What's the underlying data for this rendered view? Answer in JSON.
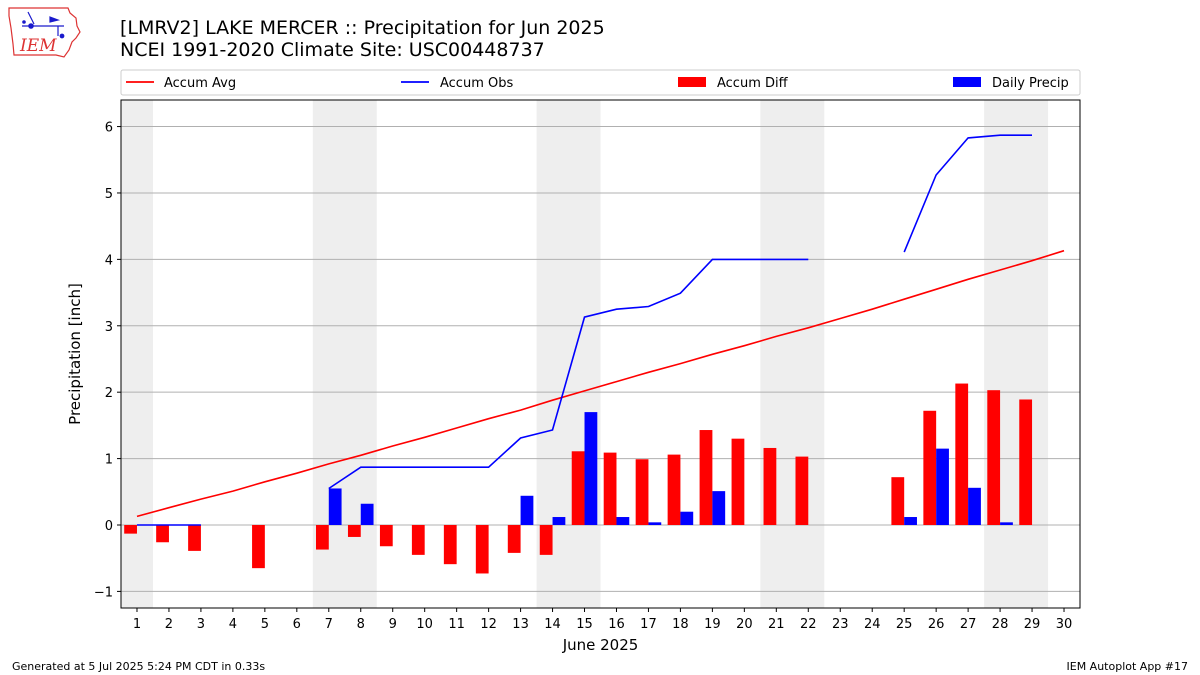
{
  "header": {
    "logo_text": "IEM",
    "title_line1": "[LMRV2] LAKE MERCER :: Precipitation for Jun 2025",
    "title_line2": "NCEI 1991-2020 Climate Site: USC00448737"
  },
  "footer": {
    "generated": "Generated at 5 Jul 2025 5:24 PM CDT in 0.33s",
    "app": "IEM Autoplot App #17"
  },
  "chart_data": {
    "type": "bar",
    "xlabel": "June 2025",
    "ylabel": "Precipitation [inch]",
    "xlim": [
      0.5,
      30.5
    ],
    "ylim": [
      -1.25,
      6.4
    ],
    "yticks": [
      -1,
      0,
      1,
      2,
      3,
      4,
      5,
      6
    ],
    "categories": [
      "1",
      "2",
      "3",
      "4",
      "5",
      "6",
      "7",
      "8",
      "9",
      "10",
      "11",
      "12",
      "13",
      "14",
      "15",
      "16",
      "17",
      "18",
      "19",
      "20",
      "21",
      "22",
      "23",
      "24",
      "25",
      "26",
      "27",
      "28",
      "29",
      "30"
    ],
    "grid": "horizontal",
    "legend_position": "top",
    "weekend_shading": [
      [
        0.5,
        1.5
      ],
      [
        6.5,
        8.5
      ],
      [
        13.5,
        15.5
      ],
      [
        20.5,
        22.5
      ],
      [
        27.5,
        29.5
      ]
    ],
    "series": [
      {
        "name": "Accum Avg",
        "kind": "line",
        "color": "#ff0000",
        "values": [
          0.13,
          0.26,
          0.39,
          0.51,
          0.65,
          0.78,
          0.92,
          1.05,
          1.19,
          1.32,
          1.46,
          1.6,
          1.73,
          1.88,
          2.02,
          2.16,
          2.3,
          2.43,
          2.57,
          2.7,
          2.84,
          2.97,
          3.11,
          3.25,
          3.4,
          3.55,
          3.7,
          3.84,
          3.98,
          4.13
        ]
      },
      {
        "name": "Accum Obs",
        "kind": "line",
        "color": "#0000ff",
        "values": [
          0.0,
          0.0,
          0.0,
          null,
          null,
          null,
          0.55,
          0.87,
          0.87,
          0.87,
          0.87,
          0.87,
          1.31,
          1.43,
          3.13,
          3.25,
          3.29,
          3.49,
          4.0,
          4.0,
          4.0,
          4.0,
          null,
          null,
          4.11,
          5.27,
          5.83,
          5.87,
          5.87,
          null
        ]
      },
      {
        "name": "Accum Diff",
        "kind": "bar",
        "color": "#ff0000",
        "values": [
          -0.13,
          -0.26,
          -0.39,
          null,
          -0.65,
          null,
          -0.37,
          -0.18,
          -0.32,
          -0.45,
          -0.59,
          -0.73,
          -0.42,
          -0.45,
          1.11,
          1.09,
          0.99,
          1.06,
          1.43,
          1.3,
          1.16,
          1.03,
          null,
          null,
          0.72,
          1.72,
          2.13,
          2.03,
          1.89,
          null
        ]
      },
      {
        "name": "Daily Precip",
        "kind": "bar",
        "color": "#0000ff",
        "values": [
          0,
          0,
          0,
          null,
          null,
          null,
          0.55,
          0.32,
          0,
          0,
          0,
          0,
          0.44,
          0.12,
          1.7,
          0.12,
          0.04,
          0.2,
          0.51,
          0,
          0,
          0,
          null,
          null,
          0.12,
          1.15,
          0.56,
          0.04,
          0,
          null
        ]
      }
    ]
  }
}
